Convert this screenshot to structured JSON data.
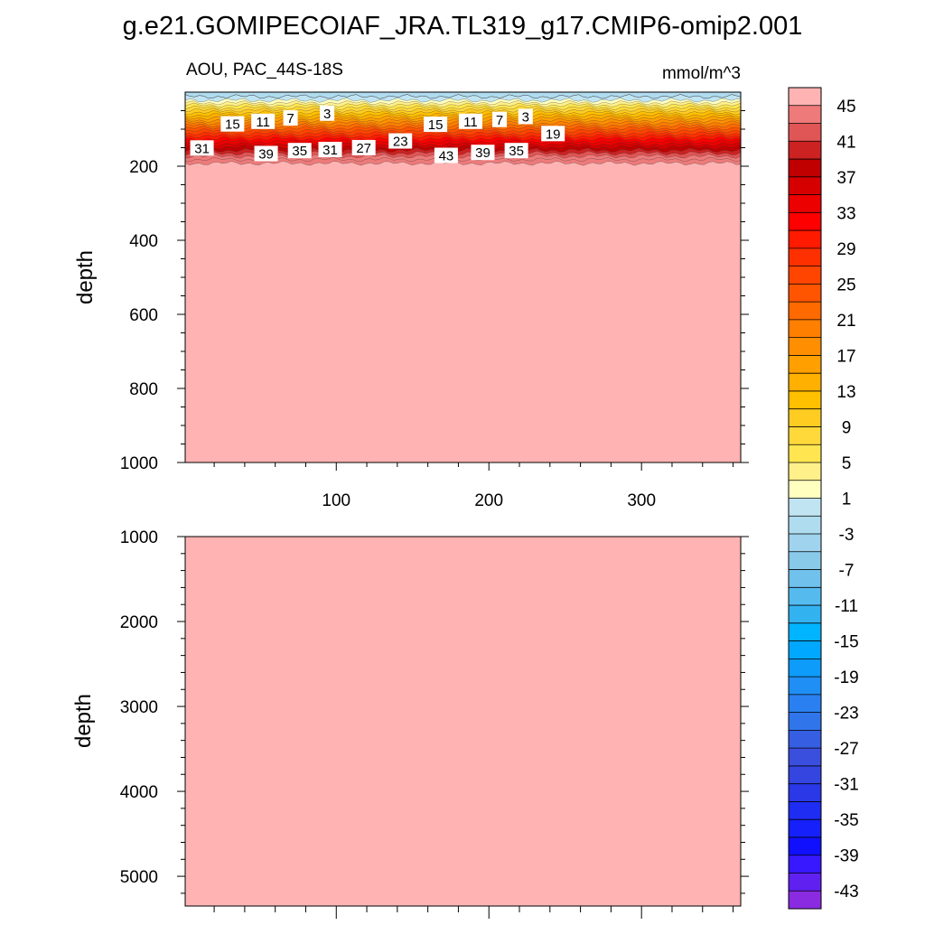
{
  "title": "g.e21.GOMIPECOIAF_JRA.TL319_g17.CMIP6-omip2.001",
  "chart_data": [
    {
      "type": "contour",
      "panel": "upper",
      "left_label": "AOU, PAC_44S-18S",
      "right_label": "mmol/m^3",
      "ylabel": "depth",
      "xlim": [
        1,
        365
      ],
      "ylim": [
        1000,
        0
      ],
      "x_ticks": [
        100,
        200,
        300
      ],
      "x_tick_labels": [
        "100",
        "200",
        "300"
      ],
      "y_ticks": [
        200,
        400,
        600,
        800,
        1000
      ],
      "y_tick_labels": [
        "200",
        "400",
        "600",
        "800",
        "1000"
      ],
      "background_value": 45,
      "contour_labels": [
        {
          "text": "3",
          "x": 94,
          "depth": 58
        },
        {
          "text": "7",
          "x": 70,
          "depth": 71
        },
        {
          "text": "11",
          "x": 52,
          "depth": 80
        },
        {
          "text": "15",
          "x": 32,
          "depth": 87
        },
        {
          "text": "31",
          "x": 12,
          "depth": 152
        },
        {
          "text": "39",
          "x": 54,
          "depth": 167
        },
        {
          "text": "35",
          "x": 76,
          "depth": 159
        },
        {
          "text": "31",
          "x": 96,
          "depth": 156
        },
        {
          "text": "27",
          "x": 118,
          "depth": 151
        },
        {
          "text": "23",
          "x": 142,
          "depth": 133
        },
        {
          "text": "15",
          "x": 165,
          "depth": 88
        },
        {
          "text": "11",
          "x": 188,
          "depth": 80
        },
        {
          "text": "7",
          "x": 207,
          "depth": 75
        },
        {
          "text": "3",
          "x": 224,
          "depth": 67
        },
        {
          "text": "19",
          "x": 242,
          "depth": 113
        },
        {
          "text": "43",
          "x": 172,
          "depth": 172
        },
        {
          "text": "39",
          "x": 196,
          "depth": 164
        },
        {
          "text": "35",
          "x": 218,
          "depth": 159
        }
      ]
    },
    {
      "type": "contour",
      "panel": "lower",
      "ylabel": "depth",
      "xlim": [
        1,
        365
      ],
      "ylim": [
        5350,
        1000
      ],
      "y_ticks": [
        1000,
        2000,
        3000,
        4000,
        5000
      ],
      "y_tick_labels": [
        "1000",
        "2000",
        "3000",
        "4000",
        "5000"
      ],
      "background_value": 45
    }
  ],
  "colorbar": {
    "levels": [
      45,
      43,
      41,
      39,
      37,
      35,
      33,
      31,
      29,
      27,
      25,
      23,
      21,
      19,
      17,
      15,
      13,
      11,
      9,
      7,
      5,
      3,
      1,
      -1,
      -3,
      -5,
      -7,
      -9,
      -11,
      -13,
      -15,
      -17,
      -19,
      -21,
      -23,
      -25,
      -27,
      -29,
      -31,
      -33,
      -35,
      -37,
      -39,
      -41,
      -43,
      -45
    ],
    "labels": [
      "45",
      "41",
      "37",
      "33",
      "29",
      "25",
      "21",
      "17",
      "13",
      "9",
      "5",
      "1",
      "-3",
      "-7",
      "-11",
      "-15",
      "-19",
      "-23",
      "-27",
      "-31",
      "-35",
      "-39",
      "-43"
    ],
    "colors": [
      "#ffb3b3",
      "#ee7a7a",
      "#e05555",
      "#cc2222",
      "#c00000",
      "#d60000",
      "#ec0000",
      "#ff0000",
      "#ff1a00",
      "#ff3000",
      "#ff4500",
      "#ff5500",
      "#ff6a00",
      "#ff7f00",
      "#ff8f00",
      "#ffa000",
      "#ffb000",
      "#ffc000",
      "#ffcc22",
      "#ffd83a",
      "#ffe650",
      "#fff08a",
      "#ffffc0",
      "#c0e4f2",
      "#b0dcf0",
      "#a0d4ee",
      "#88cae8",
      "#70c2ec",
      "#55bbee",
      "#33b2f0",
      "#00b4ff",
      "#00a8ff",
      "#0d9cfa",
      "#1f8ef5",
      "#2a80f0",
      "#3075ea",
      "#355ee2",
      "#3a4fdd",
      "#3445e0",
      "#2a38e8",
      "#1f2cf2",
      "#1520fa",
      "#1010ff",
      "#3818ff",
      "#6020f0",
      "#8a2be2"
    ]
  }
}
